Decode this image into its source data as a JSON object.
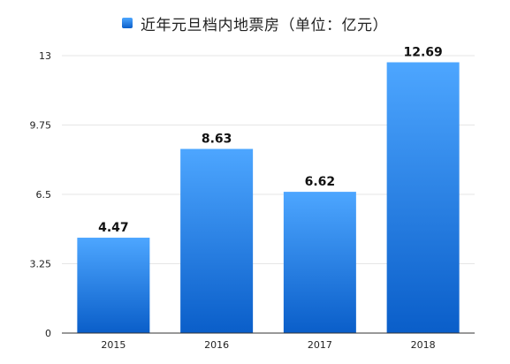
{
  "chart_data": {
    "type": "bar",
    "title": "",
    "xlabel": "",
    "ylabel": "",
    "categories": [
      "2015",
      "2016",
      "2017",
      "2018"
    ],
    "series": [
      {
        "name": "近年元旦档内地票房（单位：亿元）",
        "values": [
          4.47,
          8.63,
          6.62,
          12.69
        ],
        "color": "#1E7FE0"
      }
    ],
    "data_labels": [
      "4.47",
      "8.63",
      "6.62",
      "12.69"
    ],
    "ylim": [
      0,
      13
    ],
    "yticks": [
      0,
      3.25,
      6.5,
      9.75,
      13
    ],
    "ytick_labels": [
      "0",
      "3.25",
      "6.5",
      "9.75",
      "13"
    ],
    "grid": true,
    "legend_position": "top-center",
    "colors": {
      "bar_top": "#4DA6FF",
      "bar_bottom": "#0A5EC9",
      "grid": "#E6E6E6",
      "axis": "#333333"
    }
  }
}
